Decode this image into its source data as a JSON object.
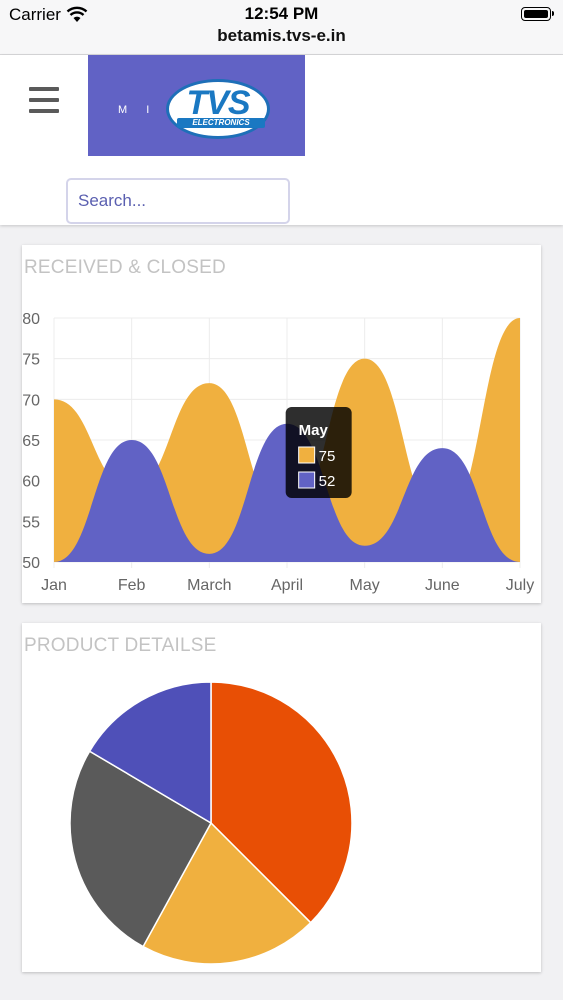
{
  "statusbar": {
    "carrier": "Carrier",
    "time": "12:54 PM",
    "url": "betamis.tvs-e.in"
  },
  "header": {
    "logo_prefix": "M I S",
    "logo_main": "TVS",
    "logo_sub": "ELECTRONICS",
    "logo_bg_color": "#6162c5",
    "search_placeholder": "Search..."
  },
  "cards": {
    "received_title": "RECEIVED & CLOSED",
    "product_title": "PRODUCT DETAILSE"
  },
  "tooltip": {
    "title": "May",
    "values": [
      "75",
      "52"
    ]
  },
  "chart_data": [
    {
      "type": "area",
      "title": "RECEIVED & CLOSED",
      "categories": [
        "Jan",
        "Feb",
        "March",
        "April",
        "May",
        "June",
        "July"
      ],
      "series": [
        {
          "values": [
            70,
            59,
            72,
            55,
            75,
            55,
            80
          ],
          "color": "#f0b03f"
        },
        {
          "values": [
            50,
            65,
            51,
            67,
            52,
            64,
            50
          ],
          "color": "#6162c5"
        }
      ],
      "ylim": [
        50,
        80
      ],
      "yticks": [
        50,
        55,
        60,
        65,
        70,
        75,
        80
      ],
      "grid": true,
      "active_category": "May"
    },
    {
      "type": "pie",
      "title": "PRODUCT DETAILSE",
      "slices": [
        {
          "value": 37.5,
          "color": "#e84f05"
        },
        {
          "value": 20.5,
          "color": "#f0b03f"
        },
        {
          "value": 25.5,
          "color": "#5a5a5a"
        },
        {
          "value": 16.5,
          "color": "#4f50b8"
        }
      ]
    }
  ]
}
